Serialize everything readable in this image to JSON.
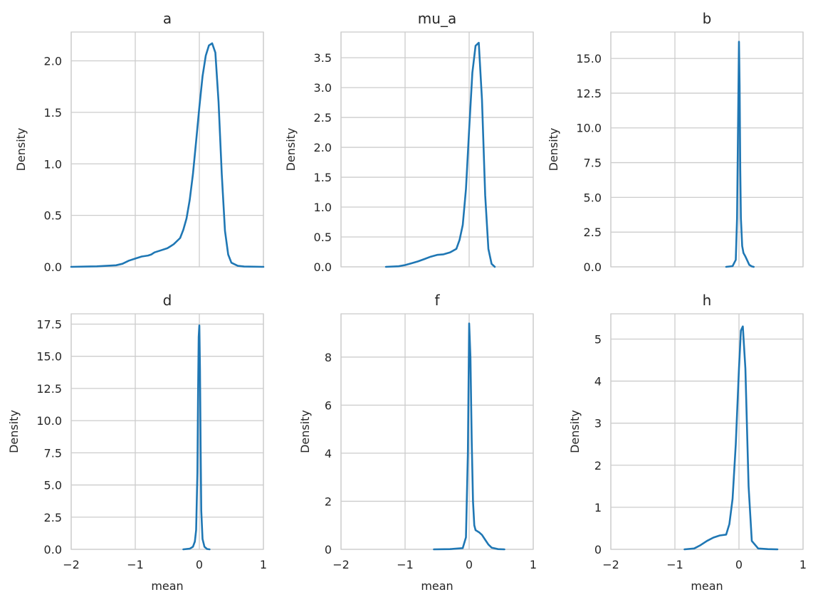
{
  "colors": {
    "line": "#1f77b4",
    "grid": "#cccccc",
    "text": "#262626",
    "background": "#ffffff"
  },
  "chart_data": [
    {
      "type": "line",
      "title": "a",
      "xlabel": "",
      "ylabel": "Density",
      "xlim": [
        -2,
        1
      ],
      "ylim": [
        0,
        2.28
      ],
      "grid": true,
      "xticks": [
        -2,
        -1,
        0,
        1
      ],
      "xtick_labels": [
        "",
        "",
        "",
        ""
      ],
      "yticks": [
        0,
        0.5,
        1.0,
        1.5,
        2.0
      ],
      "ytick_labels": [
        "0.0",
        "0.5",
        "1.0",
        "1.5",
        "2.0"
      ],
      "x": [
        -2.0,
        -1.6,
        -1.3,
        -1.2,
        -1.1,
        -1.0,
        -0.9,
        -0.8,
        -0.75,
        -0.7,
        -0.6,
        -0.5,
        -0.45,
        -0.4,
        -0.3,
        -0.25,
        -0.2,
        -0.15,
        -0.1,
        -0.05,
        0.0,
        0.05,
        0.1,
        0.15,
        0.2,
        0.25,
        0.3,
        0.35,
        0.4,
        0.45,
        0.5,
        0.6,
        0.7,
        1.0
      ],
      "y": [
        0.0,
        0.005,
        0.015,
        0.03,
        0.06,
        0.08,
        0.1,
        0.11,
        0.12,
        0.14,
        0.16,
        0.18,
        0.2,
        0.22,
        0.28,
        0.36,
        0.47,
        0.65,
        0.9,
        1.22,
        1.55,
        1.85,
        2.05,
        2.15,
        2.17,
        2.08,
        1.6,
        0.9,
        0.35,
        0.12,
        0.04,
        0.01,
        0.003,
        0.0
      ]
    },
    {
      "type": "line",
      "title": "mu_a",
      "xlabel": "",
      "ylabel": "Density",
      "xlim": [
        -2,
        1
      ],
      "ylim": [
        0,
        3.93
      ],
      "grid": true,
      "xticks": [
        -2,
        -1,
        0,
        1
      ],
      "xtick_labels": [
        "",
        "",
        "",
        ""
      ],
      "yticks": [
        0,
        0.5,
        1.0,
        1.5,
        2.0,
        2.5,
        3.0,
        3.5
      ],
      "ytick_labels": [
        "0.0",
        "0.5",
        "1.0",
        "1.5",
        "2.0",
        "2.5",
        "3.0",
        "3.5"
      ],
      "x": [
        -1.3,
        -1.1,
        -1.0,
        -0.9,
        -0.8,
        -0.7,
        -0.6,
        -0.5,
        -0.4,
        -0.3,
        -0.2,
        -0.15,
        -0.1,
        -0.05,
        0.0,
        0.05,
        0.1,
        0.15,
        0.2,
        0.25,
        0.3,
        0.35,
        0.4
      ],
      "y": [
        0.0,
        0.01,
        0.03,
        0.06,
        0.09,
        0.13,
        0.17,
        0.2,
        0.21,
        0.24,
        0.3,
        0.45,
        0.7,
        1.3,
        2.3,
        3.25,
        3.7,
        3.75,
        2.8,
        1.2,
        0.3,
        0.05,
        0.0
      ]
    },
    {
      "type": "line",
      "title": "b",
      "xlabel": "",
      "ylabel": "Density",
      "xlim": [
        -2,
        1
      ],
      "ylim": [
        0,
        16.9
      ],
      "grid": true,
      "xticks": [
        -2,
        -1,
        0,
        1
      ],
      "xtick_labels": [
        "",
        "",
        "",
        ""
      ],
      "yticks": [
        0,
        2.5,
        5.0,
        7.5,
        10.0,
        12.5,
        15.0
      ],
      "ytick_labels": [
        "0.0",
        "2.5",
        "5.0",
        "7.5",
        "10.0",
        "12.5",
        "15.0"
      ],
      "x": [
        -0.2,
        -0.1,
        -0.05,
        -0.03,
        -0.01,
        0.0,
        0.01,
        0.02,
        0.03,
        0.05,
        0.07,
        0.1,
        0.13,
        0.16,
        0.2,
        0.23
      ],
      "y": [
        0.0,
        0.05,
        0.5,
        3.5,
        12.0,
        16.2,
        13.0,
        7.0,
        3.5,
        1.5,
        1.0,
        0.75,
        0.45,
        0.15,
        0.03,
        0.0
      ]
    },
    {
      "type": "line",
      "title": "d",
      "xlabel": "mean",
      "ylabel": "Density",
      "xlim": [
        -2,
        1
      ],
      "ylim": [
        0,
        18.3
      ],
      "grid": true,
      "xticks": [
        -2,
        -1,
        0,
        1
      ],
      "xtick_labels": [
        "−2",
        "−1",
        "0",
        "1"
      ],
      "yticks": [
        0,
        2.5,
        5.0,
        7.5,
        10.0,
        12.5,
        15.0,
        17.5
      ],
      "ytick_labels": [
        "0.0",
        "2.5",
        "5.0",
        "7.5",
        "10.0",
        "12.5",
        "15.0",
        "17.5"
      ],
      "x": [
        -0.25,
        -0.15,
        -0.1,
        -0.07,
        -0.05,
        -0.03,
        -0.02,
        -0.01,
        0.0,
        0.01,
        0.02,
        0.03,
        0.05,
        0.08,
        0.12,
        0.16
      ],
      "y": [
        0.0,
        0.05,
        0.2,
        0.6,
        1.5,
        6.0,
        12.0,
        16.5,
        17.4,
        14.0,
        8.0,
        3.0,
        0.8,
        0.2,
        0.03,
        0.0
      ]
    },
    {
      "type": "line",
      "title": "f",
      "xlabel": "mean",
      "ylabel": "Density",
      "xlim": [
        -2,
        1
      ],
      "ylim": [
        0,
        9.8
      ],
      "grid": true,
      "xticks": [
        -2,
        -1,
        0,
        1
      ],
      "xtick_labels": [
        "−2",
        "−1",
        "0",
        "1"
      ],
      "yticks": [
        0,
        2,
        4,
        6,
        8
      ],
      "ytick_labels": [
        "0",
        "2",
        "4",
        "6",
        "8"
      ],
      "x": [
        -0.55,
        -0.3,
        -0.1,
        -0.05,
        -0.02,
        0.0,
        0.02,
        0.04,
        0.06,
        0.08,
        0.1,
        0.13,
        0.16,
        0.2,
        0.25,
        0.3,
        0.35,
        0.45,
        0.55
      ],
      "y": [
        0.0,
        0.01,
        0.05,
        0.5,
        4.0,
        9.4,
        8.0,
        4.5,
        2.0,
        1.0,
        0.8,
        0.75,
        0.7,
        0.6,
        0.4,
        0.2,
        0.07,
        0.01,
        0.0
      ]
    },
    {
      "type": "line",
      "title": "h",
      "xlabel": "mean",
      "ylabel": "Density",
      "xlim": [
        -2,
        1
      ],
      "ylim": [
        0,
        5.6
      ],
      "grid": true,
      "xticks": [
        -2,
        -1,
        0,
        1
      ],
      "xtick_labels": [
        "−2",
        "−1",
        "0",
        "1"
      ],
      "yticks": [
        0,
        1,
        2,
        3,
        4,
        5
      ],
      "ytick_labels": [
        "0",
        "1",
        "2",
        "3",
        "4",
        "5"
      ],
      "x": [
        -0.85,
        -0.7,
        -0.6,
        -0.5,
        -0.4,
        -0.3,
        -0.2,
        -0.15,
        -0.1,
        -0.05,
        0.0,
        0.03,
        0.06,
        0.1,
        0.15,
        0.2,
        0.3,
        0.45,
        0.6
      ],
      "y": [
        0.0,
        0.02,
        0.1,
        0.2,
        0.28,
        0.33,
        0.35,
        0.6,
        1.2,
        2.5,
        4.3,
        5.2,
        5.3,
        4.3,
        1.5,
        0.2,
        0.02,
        0.005,
        0.0
      ]
    }
  ]
}
